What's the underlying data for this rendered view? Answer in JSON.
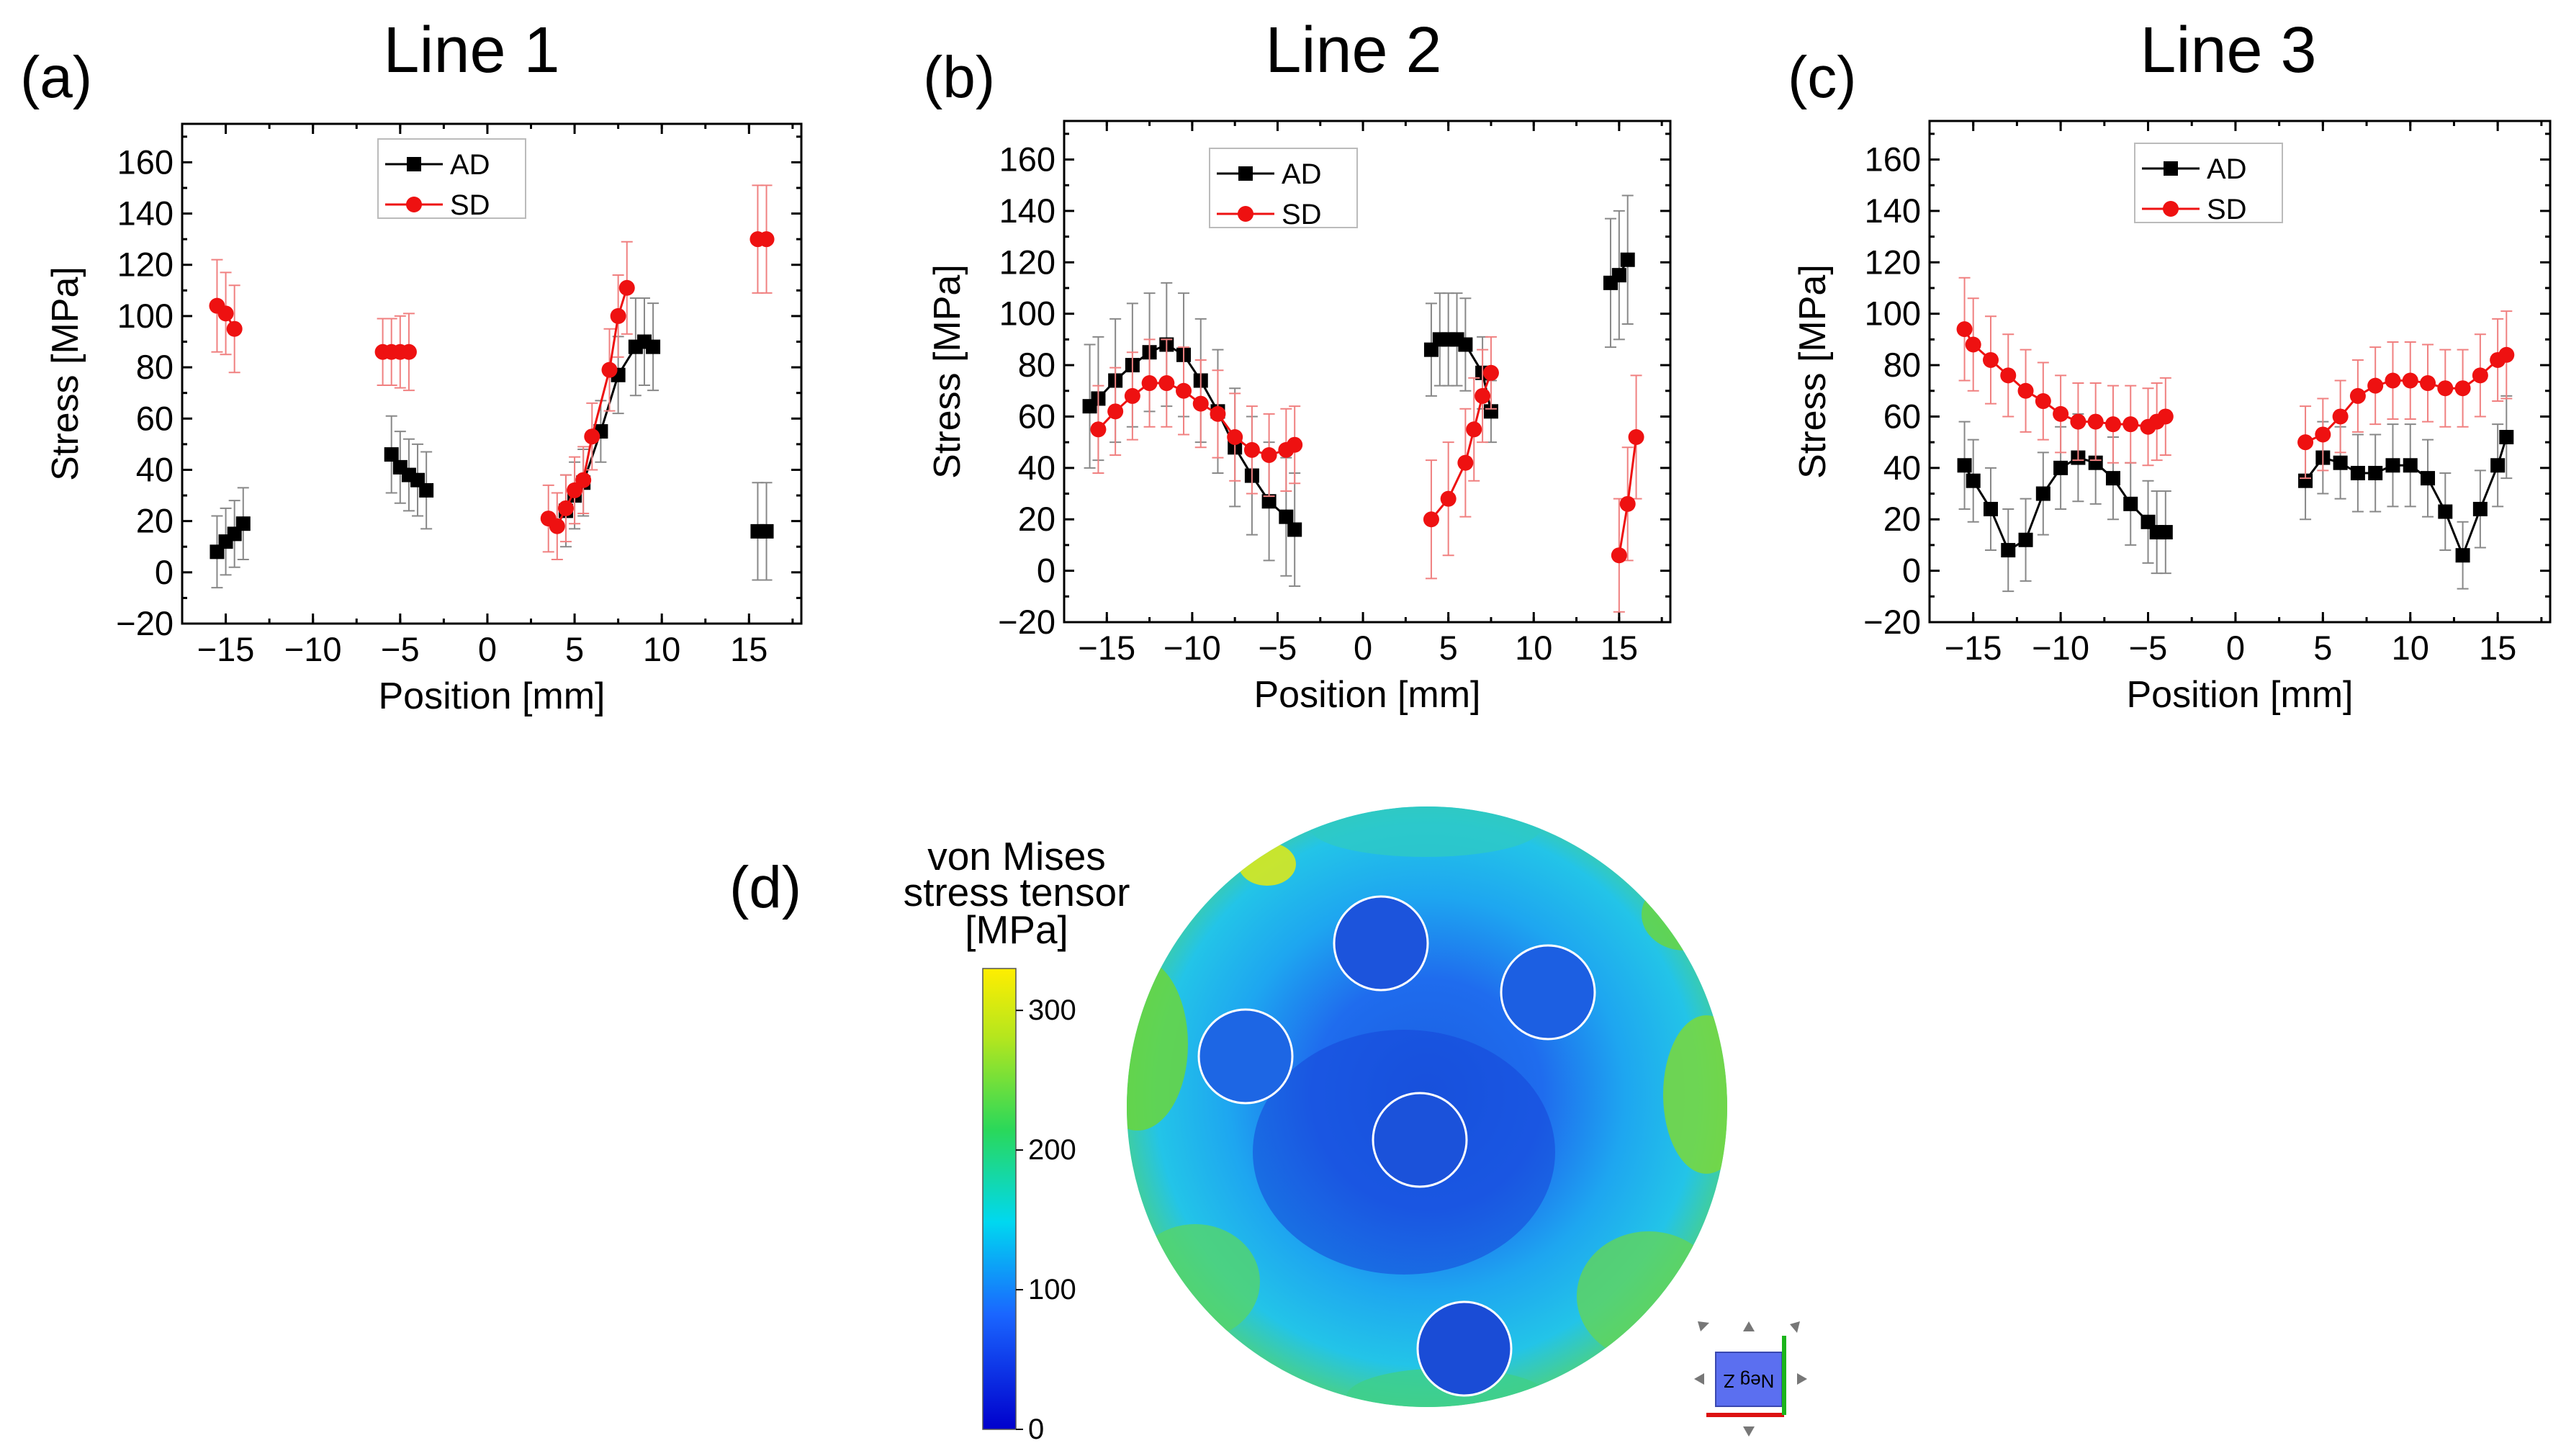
{
  "panels": {
    "letter_d": "(d)"
  },
  "chart_data": [
    {
      "type": "scatter",
      "panel": "(a)",
      "title": "Line 1",
      "xlabel": "Position [mm]",
      "ylabel": "Stress [MPa]",
      "xlim": [
        -17.5,
        18
      ],
      "ylim": [
        -20,
        175
      ],
      "xticks": [
        -15,
        -10,
        -5,
        0,
        5,
        10,
        15
      ],
      "yticks": [
        -20,
        0,
        20,
        40,
        60,
        80,
        100,
        120,
        140,
        160
      ],
      "legend": "top-center",
      "series": [
        {
          "name": "AD",
          "color": "#000000",
          "marker": "square",
          "segments": [
            {
              "x": [
                -15.5,
                -15,
                -14.5,
                -14
              ],
              "y": [
                8,
                12,
                15,
                19
              ],
              "err": [
                14,
                13,
                13,
                14
              ]
            },
            {
              "x": [
                -5.5,
                -5,
                -4.5,
                -4,
                -3.5
              ],
              "y": [
                46,
                41,
                38,
                36,
                32
              ],
              "err": [
                15,
                14,
                14,
                14,
                15
              ]
            },
            {
              "x": [
                4.5,
                5,
                5.5,
                6.5,
                7.5,
                8.5,
                9,
                9.5
              ],
              "y": [
                24,
                30,
                35,
                55,
                77,
                88,
                90,
                88
              ],
              "err": [
                14,
                13,
                13,
                12,
                15,
                19,
                17,
                17
              ]
            },
            {
              "x": [
                15.5,
                16
              ],
              "y": [
                16,
                16
              ],
              "err": [
                19,
                19
              ]
            }
          ]
        },
        {
          "name": "SD",
          "color": "#ee1111",
          "marker": "circle",
          "segments": [
            {
              "x": [
                -15.5,
                -15,
                -14.5
              ],
              "y": [
                104,
                101,
                95
              ],
              "err": [
                18,
                16,
                17
              ]
            },
            {
              "x": [
                -6,
                -5.5,
                -5,
                -4.5
              ],
              "y": [
                86,
                86,
                86,
                86
              ],
              "err": [
                13,
                13,
                14,
                15
              ]
            },
            {
              "x": [
                3.5,
                4,
                4.5,
                5,
                5.5,
                6,
                7,
                7.5,
                8
              ],
              "y": [
                21,
                18,
                25,
                32,
                36,
                53,
                79,
                100,
                111
              ],
              "err": [
                13,
                13,
                13,
                13,
                13,
                13,
                16,
                16,
                18
              ]
            },
            {
              "x": [
                15.5,
                16
              ],
              "y": [
                130,
                130
              ],
              "err": [
                21,
                21
              ]
            }
          ]
        }
      ]
    },
    {
      "type": "scatter",
      "panel": "(b)",
      "title": "Line 2",
      "xlabel": "Position [mm]",
      "ylabel": "Stress [MPa]",
      "xlim": [
        -17.5,
        18
      ],
      "ylim": [
        -20,
        175
      ],
      "xticks": [
        -15,
        -10,
        -5,
        0,
        5,
        10,
        15
      ],
      "yticks": [
        -20,
        0,
        20,
        40,
        60,
        80,
        100,
        120,
        140,
        160
      ],
      "legend": "top-left",
      "series": [
        {
          "name": "AD",
          "color": "#000000",
          "marker": "square",
          "segments": [
            {
              "x": [
                -16,
                -15.5,
                -14.5,
                -13.5,
                -12.5,
                -11.5,
                -10.5,
                -9.5,
                -8.5,
                -7.5,
                -6.5,
                -5.5,
                -4.5,
                -4
              ],
              "y": [
                64,
                67,
                74,
                80,
                85,
                88,
                84,
                74,
                62,
                48,
                37,
                27,
                21,
                16
              ],
              "err": [
                24,
                24,
                24,
                24,
                23,
                24,
                24,
                24,
                24,
                23,
                23,
                23,
                23,
                22
              ]
            },
            {
              "x": [
                4,
                4.5,
                5,
                5.5,
                6,
                7,
                7.5
              ],
              "y": [
                86,
                90,
                90,
                90,
                88,
                77,
                62
              ],
              "err": [
                18,
                18,
                18,
                18,
                18,
                14,
                12
              ]
            },
            {
              "x": [
                14.5,
                15,
                15.5
              ],
              "y": [
                112,
                115,
                121
              ],
              "err": [
                25,
                25,
                25
              ]
            }
          ]
        },
        {
          "name": "SD",
          "color": "#ee1111",
          "marker": "circle",
          "segments": [
            {
              "x": [
                -15.5,
                -14.5,
                -13.5,
                -12.5,
                -11.5,
                -10.5,
                -9.5,
                -8.5,
                -7.5,
                -6.5,
                -5.5,
                -4.5,
                -4
              ],
              "y": [
                55,
                62,
                68,
                73,
                73,
                70,
                65,
                61,
                52,
                47,
                45,
                47,
                49
              ],
              "err": [
                17,
                17,
                17,
                17,
                17,
                17,
                17,
                17,
                17,
                17,
                16,
                16,
                15
              ]
            },
            {
              "x": [
                4,
                5,
                6,
                6.5,
                7,
                7.5
              ],
              "y": [
                20,
                28,
                42,
                55,
                68,
                77
              ],
              "err": [
                23,
                22,
                21,
                20,
                18,
                14
              ]
            },
            {
              "x": [
                15,
                15.5,
                16
              ],
              "y": [
                6,
                26,
                52
              ],
              "err": [
                22,
                22,
                24
              ]
            }
          ]
        }
      ]
    },
    {
      "type": "scatter",
      "panel": "(c)",
      "title": "Line 3",
      "xlabel": "Position [mm]",
      "ylabel": "Stress [MPa]",
      "xlim": [
        -17.5,
        18
      ],
      "ylim": [
        -20,
        175
      ],
      "xticks": [
        -15,
        -10,
        -5,
        0,
        5,
        10,
        15
      ],
      "yticks": [
        -20,
        0,
        20,
        40,
        60,
        80,
        100,
        120,
        140,
        160
      ],
      "legend": "top-center",
      "series": [
        {
          "name": "AD",
          "color": "#000000",
          "marker": "square",
          "segments": [
            {
              "x": [
                -15.5,
                -15,
                -14,
                -13,
                -12,
                -11,
                -10,
                -9,
                -8,
                -7,
                -6,
                -5,
                -4.5,
                -4
              ],
              "y": [
                41,
                35,
                24,
                8,
                12,
                30,
                40,
                44,
                42,
                36,
                26,
                19,
                15,
                15
              ],
              "err": [
                17,
                16,
                16,
                16,
                16,
                16,
                16,
                17,
                16,
                16,
                16,
                16,
                16,
                16
              ]
            },
            {
              "x": [
                4,
                5,
                6,
                7,
                8,
                9,
                10,
                11,
                12,
                13,
                14,
                15,
                15.5
              ],
              "y": [
                35,
                44,
                42,
                38,
                38,
                41,
                41,
                36,
                23,
                6,
                24,
                41,
                52
              ],
              "err": [
                15,
                14,
                14,
                15,
                15,
                16,
                16,
                15,
                15,
                13,
                15,
                16,
                16
              ]
            }
          ]
        },
        {
          "name": "SD",
          "color": "#ee1111",
          "marker": "circle",
          "segments": [
            {
              "x": [
                -15.5,
                -15,
                -14,
                -13,
                -12,
                -11,
                -10,
                -9,
                -8,
                -7,
                -6,
                -5,
                -4.5,
                -4
              ],
              "y": [
                94,
                88,
                82,
                76,
                70,
                66,
                61,
                58,
                58,
                57,
                57,
                56,
                58,
                60
              ],
              "err": [
                20,
                18,
                17,
                16,
                16,
                15,
                15,
                15,
                15,
                15,
                15,
                15,
                15,
                15
              ]
            },
            {
              "x": [
                4,
                5,
                6,
                7,
                8,
                9,
                10,
                11,
                12,
                13,
                14,
                15,
                15.5
              ],
              "y": [
                50,
                53,
                60,
                68,
                72,
                74,
                74,
                73,
                71,
                71,
                76,
                82,
                84
              ],
              "err": [
                14,
                14,
                14,
                14,
                15,
                15,
                15,
                15,
                15,
                15,
                16,
                16,
                17
              ]
            }
          ]
        }
      ]
    }
  ],
  "colorbar": {
    "title_lines": [
      "von Mises",
      "stress tensor",
      "[MPa]"
    ],
    "ticks": [
      0,
      100,
      200,
      300
    ],
    "max": 330
  },
  "orientation_widget": {
    "label": "Neg Z"
  }
}
